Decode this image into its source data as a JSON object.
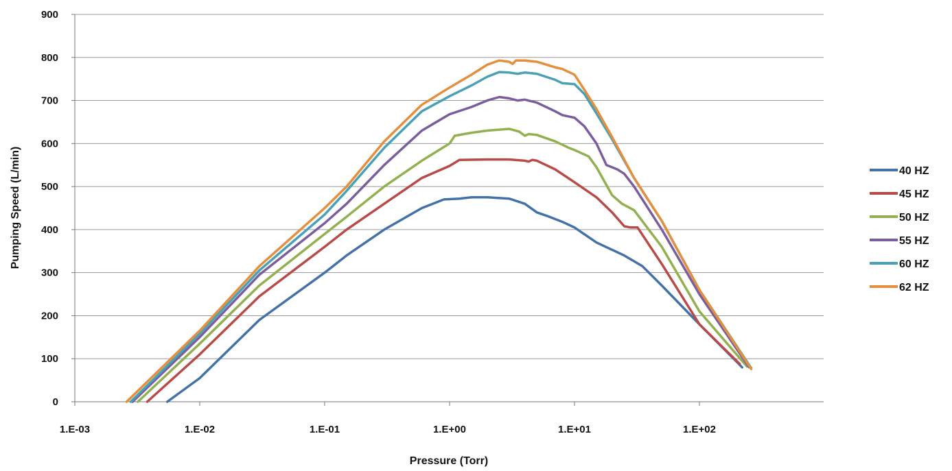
{
  "chart_data": {
    "type": "line",
    "title": "",
    "xlabel": "Pressure (Torr)",
    "ylabel": "Pumping Speed (L/min)",
    "x_scale": "log",
    "xlim": [
      0.001,
      1000
    ],
    "ylim": [
      0,
      900
    ],
    "x_ticks": [
      {
        "value": 0.001,
        "label": "1.E-03"
      },
      {
        "value": 0.01,
        "label": "1.E-02"
      },
      {
        "value": 0.1,
        "label": "1.E-01"
      },
      {
        "value": 1,
        "label": "1.E+00"
      },
      {
        "value": 10,
        "label": "1.E+01"
      },
      {
        "value": 100,
        "label": "1.E+02"
      }
    ],
    "y_ticks": [
      0,
      100,
      200,
      300,
      400,
      500,
      600,
      700,
      800,
      900
    ],
    "grid": "horizontal",
    "legend_position": "right",
    "series": [
      {
        "name": "40 HZ",
        "color": "#4472a8",
        "points": [
          [
            0.0055,
            0
          ],
          [
            0.01,
            55
          ],
          [
            0.03,
            190
          ],
          [
            0.1,
            300
          ],
          [
            0.15,
            340
          ],
          [
            0.3,
            400
          ],
          [
            0.6,
            450
          ],
          [
            0.9,
            470
          ],
          [
            1.2,
            472
          ],
          [
            1.5,
            475
          ],
          [
            2,
            475
          ],
          [
            3,
            472
          ],
          [
            4,
            460
          ],
          [
            5,
            440
          ],
          [
            6,
            432
          ],
          [
            8,
            418
          ],
          [
            10,
            405
          ],
          [
            15,
            370
          ],
          [
            25,
            340
          ],
          [
            35,
            315
          ],
          [
            50,
            270
          ],
          [
            100,
            180
          ],
          [
            220,
            80
          ]
        ]
      },
      {
        "name": "45 HZ",
        "color": "#b84a48",
        "points": [
          [
            0.0038,
            0
          ],
          [
            0.01,
            110
          ],
          [
            0.03,
            245
          ],
          [
            0.1,
            360
          ],
          [
            0.15,
            400
          ],
          [
            0.3,
            460
          ],
          [
            0.6,
            520
          ],
          [
            1,
            548
          ],
          [
            1.2,
            562
          ],
          [
            2,
            563
          ],
          [
            3,
            563
          ],
          [
            4,
            560
          ],
          [
            4.3,
            558
          ],
          [
            4.6,
            562
          ],
          [
            5,
            560
          ],
          [
            7,
            540
          ],
          [
            10,
            510
          ],
          [
            15,
            475
          ],
          [
            20,
            440
          ],
          [
            25,
            408
          ],
          [
            28,
            405
          ],
          [
            32,
            405
          ],
          [
            50,
            320
          ],
          [
            100,
            180
          ],
          [
            210,
            88
          ]
        ]
      },
      {
        "name": "50 HZ",
        "color": "#92b050",
        "points": [
          [
            0.0032,
            0
          ],
          [
            0.01,
            135
          ],
          [
            0.03,
            270
          ],
          [
            0.1,
            390
          ],
          [
            0.15,
            430
          ],
          [
            0.3,
            500
          ],
          [
            0.6,
            560
          ],
          [
            1,
            600
          ],
          [
            1.1,
            618
          ],
          [
            1.5,
            625
          ],
          [
            2,
            630
          ],
          [
            3,
            634
          ],
          [
            3.6,
            628
          ],
          [
            4,
            618
          ],
          [
            4.3,
            622
          ],
          [
            5,
            620
          ],
          [
            7,
            605
          ],
          [
            9,
            590
          ],
          [
            10,
            585
          ],
          [
            13,
            570
          ],
          [
            15,
            545
          ],
          [
            20,
            480
          ],
          [
            24,
            460
          ],
          [
            30,
            445
          ],
          [
            50,
            360
          ],
          [
            100,
            210
          ],
          [
            240,
            82
          ]
        ]
      },
      {
        "name": "55 HZ",
        "color": "#7a5e9c",
        "points": [
          [
            0.0029,
            0
          ],
          [
            0.01,
            150
          ],
          [
            0.03,
            295
          ],
          [
            0.1,
            415
          ],
          [
            0.15,
            460
          ],
          [
            0.3,
            550
          ],
          [
            0.6,
            630
          ],
          [
            1,
            668
          ],
          [
            1.5,
            685
          ],
          [
            2,
            700
          ],
          [
            2.5,
            708
          ],
          [
            3,
            705
          ],
          [
            3.5,
            700
          ],
          [
            4,
            702
          ],
          [
            5,
            695
          ],
          [
            7,
            675
          ],
          [
            8,
            666
          ],
          [
            10,
            660
          ],
          [
            12,
            640
          ],
          [
            15,
            600
          ],
          [
            18,
            550
          ],
          [
            22,
            540
          ],
          [
            25,
            530
          ],
          [
            30,
            500
          ],
          [
            50,
            400
          ],
          [
            100,
            250
          ],
          [
            250,
            80
          ]
        ]
      },
      {
        "name": "60 HZ",
        "color": "#4aa0b5",
        "points": [
          [
            0.0028,
            0
          ],
          [
            0.01,
            158
          ],
          [
            0.03,
            305
          ],
          [
            0.1,
            435
          ],
          [
            0.15,
            490
          ],
          [
            0.3,
            590
          ],
          [
            0.6,
            675
          ],
          [
            1,
            710
          ],
          [
            1.5,
            735
          ],
          [
            2,
            755
          ],
          [
            2.5,
            766
          ],
          [
            3,
            765
          ],
          [
            3.5,
            762
          ],
          [
            4,
            765
          ],
          [
            5,
            762
          ],
          [
            7,
            748
          ],
          [
            8,
            740
          ],
          [
            10,
            738
          ],
          [
            12,
            715
          ],
          [
            15,
            670
          ],
          [
            20,
            610
          ],
          [
            30,
            520
          ],
          [
            50,
            420
          ],
          [
            100,
            260
          ],
          [
            260,
            78
          ]
        ]
      },
      {
        "name": "62 HZ",
        "color": "#e48f3e",
        "points": [
          [
            0.0026,
            0
          ],
          [
            0.01,
            165
          ],
          [
            0.03,
            315
          ],
          [
            0.1,
            450
          ],
          [
            0.15,
            500
          ],
          [
            0.3,
            605
          ],
          [
            0.6,
            690
          ],
          [
            1,
            730
          ],
          [
            1.5,
            760
          ],
          [
            2,
            783
          ],
          [
            2.5,
            793
          ],
          [
            3,
            790
          ],
          [
            3.2,
            785
          ],
          [
            3.4,
            793
          ],
          [
            4,
            793
          ],
          [
            5,
            790
          ],
          [
            6,
            783
          ],
          [
            7,
            777
          ],
          [
            8,
            773
          ],
          [
            10,
            760
          ],
          [
            12,
            725
          ],
          [
            15,
            680
          ],
          [
            20,
            615
          ],
          [
            30,
            520
          ],
          [
            50,
            420
          ],
          [
            100,
            260
          ],
          [
            260,
            76
          ]
        ]
      }
    ]
  }
}
